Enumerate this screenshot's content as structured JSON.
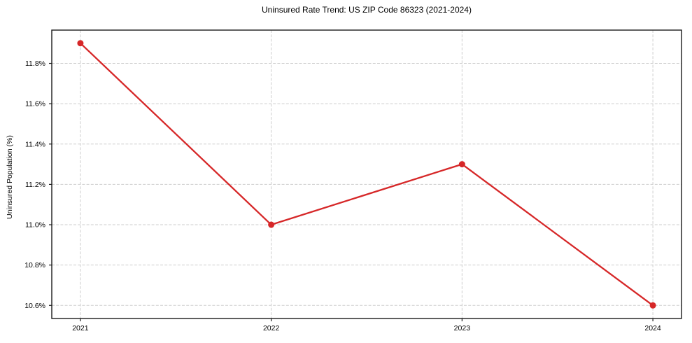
{
  "chart_data": {
    "type": "line",
    "title": "Uninsured Rate Trend: US ZIP Code 86323 (2021-2024)",
    "xlabel": "",
    "ylabel": "Uninsured Population (%)",
    "x": [
      2021,
      2022,
      2023,
      2024
    ],
    "values": [
      11.9,
      11.0,
      11.3,
      10.6
    ],
    "xlim": [
      2020.85,
      2024.15
    ],
    "ylim": [
      10.535,
      11.965
    ],
    "xticks": {
      "values": [
        2021,
        2022,
        2023,
        2024
      ],
      "labels": [
        "2021",
        "2022",
        "2023",
        "2024"
      ]
    },
    "yticks": {
      "values": [
        10.6,
        10.8,
        11.0,
        11.2,
        11.4,
        11.6,
        11.8
      ],
      "labels": [
        "10.6%",
        "10.8%",
        "11.0%",
        "11.2%",
        "11.4%",
        "11.6%",
        "11.8%"
      ]
    },
    "grid": "dashed",
    "legend": "none",
    "colors": {
      "line": "#d62728",
      "marker": "#d62728",
      "grid": "#cdcdcd",
      "spine": "#1a1a1a",
      "text": "#000000"
    }
  }
}
